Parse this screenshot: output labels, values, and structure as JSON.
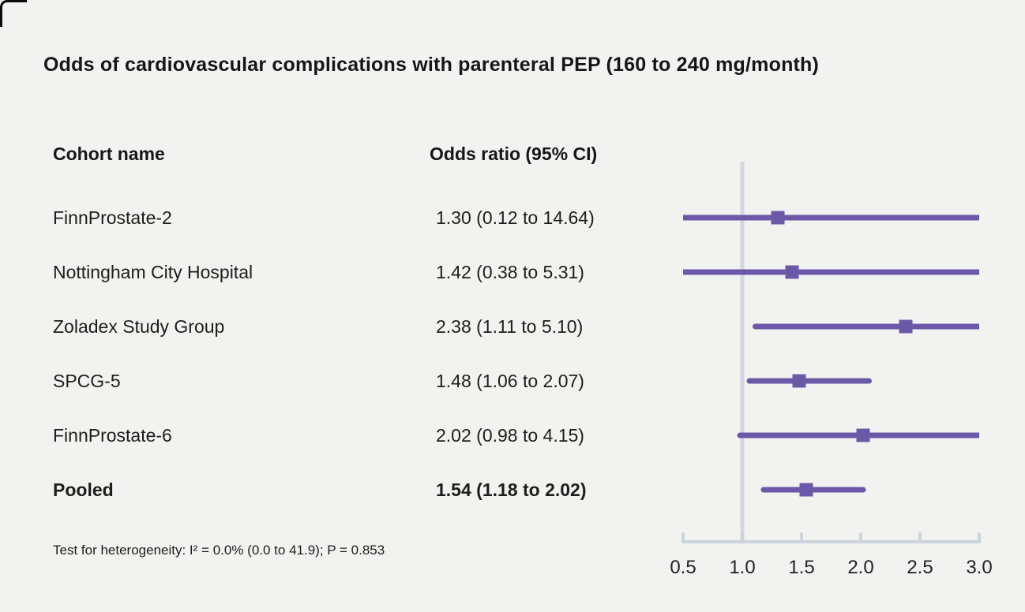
{
  "title": "Odds of cardiovascular complications with parenteral PEP (160 to 240 mg/month)",
  "columns": {
    "cohort": "Cohort name",
    "odds": "Odds ratio (95% CI)"
  },
  "footnote": "Test for heterogeneity: I² = 0.0% (0.0 to 41.9); P = 0.853",
  "colors": {
    "background": "#f2f2f1",
    "marker_purple": "#6b59a7",
    "axis_gray": "#cdd4de",
    "ref_line_gray": "#d2d7e0",
    "text": "#1d1d1b"
  },
  "chart_data": {
    "type": "forest",
    "title": "Odds of cardiovascular complications with parenteral PEP (160 to 240 mg/month)",
    "xlabel": "Odds ratio",
    "xlim": [
      0.5,
      3.0
    ],
    "ref_line": 1.0,
    "tick_labels": [
      "0.5",
      "1.0",
      "1.5",
      "2.0",
      "2.5",
      "3.0"
    ],
    "tick_values": [
      0.5,
      1.0,
      1.5,
      2.0,
      2.5,
      3.0
    ],
    "rows": [
      {
        "label": "FinnProstate-2",
        "display": "1.30 (0.12 to 14.64)",
        "or": 1.3,
        "lo": 0.12,
        "hi": 14.64,
        "bold": false
      },
      {
        "label": "Nottingham City Hospital",
        "display": "1.42 (0.38 to 5.31)",
        "or": 1.42,
        "lo": 0.38,
        "hi": 5.31,
        "bold": false
      },
      {
        "label": "Zoladex Study Group",
        "display": "2.38 (1.11 to 5.10)",
        "or": 2.38,
        "lo": 1.11,
        "hi": 5.1,
        "bold": false
      },
      {
        "label": "SPCG-5",
        "display": "1.48 (1.06 to 2.07)",
        "or": 1.48,
        "lo": 1.06,
        "hi": 2.07,
        "bold": false
      },
      {
        "label": "FinnProstate-6",
        "display": "2.02 (0.98 to 4.15)",
        "or": 2.02,
        "lo": 0.98,
        "hi": 4.15,
        "bold": false
      },
      {
        "label": "Pooled",
        "display": "1.54 (1.18 to 2.02)",
        "or": 1.54,
        "lo": 1.18,
        "hi": 2.02,
        "bold": true
      }
    ]
  }
}
